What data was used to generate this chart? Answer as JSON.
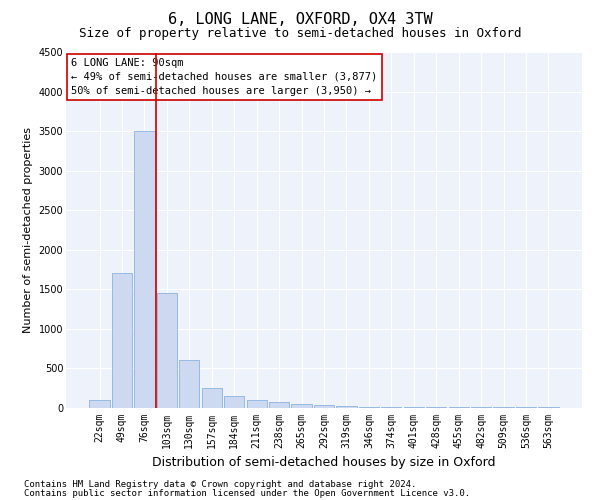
{
  "title": "6, LONG LANE, OXFORD, OX4 3TW",
  "subtitle": "Size of property relative to semi-detached houses in Oxford",
  "xlabel": "Distribution of semi-detached houses by size in Oxford",
  "ylabel": "Number of semi-detached properties",
  "categories": [
    "22sqm",
    "49sqm",
    "76sqm",
    "103sqm",
    "130sqm",
    "157sqm",
    "184sqm",
    "211sqm",
    "238sqm",
    "265sqm",
    "292sqm",
    "319sqm",
    "346sqm",
    "374sqm",
    "401sqm",
    "428sqm",
    "455sqm",
    "482sqm",
    "509sqm",
    "536sqm",
    "563sqm"
  ],
  "values": [
    100,
    1700,
    3500,
    1450,
    600,
    250,
    140,
    90,
    70,
    50,
    30,
    20,
    10,
    8,
    5,
    4,
    3,
    2,
    2,
    1,
    1
  ],
  "bar_color": "#ccd9f0",
  "bar_edge_color": "#7da7d9",
  "vline_color": "#cc0000",
  "vline_x": 2.5,
  "ylim": [
    0,
    4500
  ],
  "yticks": [
    0,
    500,
    1000,
    1500,
    2000,
    2500,
    3000,
    3500,
    4000,
    4500
  ],
  "annotation_box_text": "6 LONG LANE: 90sqm\n← 49% of semi-detached houses are smaller (3,877)\n50% of semi-detached houses are larger (3,950) →",
  "footnote1": "Contains HM Land Registry data © Crown copyright and database right 2024.",
  "footnote2": "Contains public sector information licensed under the Open Government Licence v3.0.",
  "bg_color": "#eef2fa",
  "fig_bg_color": "#ffffff",
  "grid_color": "#ffffff",
  "title_fontsize": 11,
  "subtitle_fontsize": 9,
  "xlabel_fontsize": 9,
  "ylabel_fontsize": 8,
  "tick_fontsize": 7,
  "annot_fontsize": 7.5,
  "footnote_fontsize": 6.5
}
